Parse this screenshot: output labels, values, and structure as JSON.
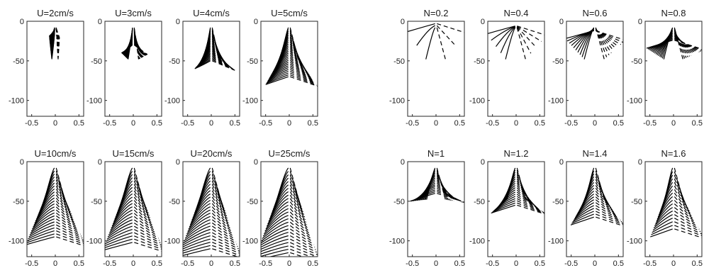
{
  "chart_data": [
    {
      "type": "line",
      "group": "velocity",
      "panels": [
        {
          "title": "U=2cm/s",
          "fan": 9,
          "lineCount": 32,
          "solidCut": 0.08,
          "endLen": 0.04
        },
        {
          "title": "U=3cm/s",
          "fan": 30,
          "lineCount": 28,
          "solidCut": 0.2,
          "endLen": 0.25
        },
        {
          "title": "U=4cm/s",
          "fan": 50,
          "lineCount": 28,
          "solidCut": 0.3,
          "endLen": 0.45
        },
        {
          "title": "U=5cm/s",
          "fan": 70,
          "lineCount": 28,
          "solidCut": 0.45,
          "endLen": 0.55
        },
        {
          "title": "U=10cm/s",
          "fan": 95,
          "lineCount": 24,
          "solidCut": 0.58,
          "endLen": 0.6
        },
        {
          "title": "U=15cm/s",
          "fan": 102,
          "lineCount": 24,
          "solidCut": 0.6,
          "endLen": 0.6
        },
        {
          "title": "U=20cm/s",
          "fan": 110,
          "lineCount": 26,
          "solidCut": 0.65,
          "endLen": 0.6
        },
        {
          "title": "U=25cm/s",
          "fan": 115,
          "lineCount": 26,
          "solidCut": 0.7,
          "endLen": 0.6
        }
      ]
    },
    {
      "type": "line",
      "group": "stratification",
      "panels": [
        {
          "title": "N=0.2",
          "fan": 3,
          "lineCount": 3,
          "solidCut": 0.55,
          "endLen": 0.6
        },
        {
          "title": "N=0.4",
          "fan": 6,
          "lineCount": 5,
          "solidCut": 0.58,
          "endLen": 0.6
        },
        {
          "title": "N=0.6",
          "fan": 12,
          "lineCount": 10,
          "solidCut": 0.58,
          "endLen": 0.6
        },
        {
          "title": "N=0.8",
          "fan": 24,
          "lineCount": 14,
          "solidCut": 0.52,
          "endLen": 0.6
        },
        {
          "title": "N=1",
          "fan": 40,
          "lineCount": 16,
          "solidCut": 0.5,
          "endLen": 0.6
        },
        {
          "title": "N=1.2",
          "fan": 55,
          "lineCount": 18,
          "solidCut": 0.48,
          "endLen": 0.6
        },
        {
          "title": "N=1.4",
          "fan": 70,
          "lineCount": 18,
          "solidCut": 0.46,
          "endLen": 0.6
        },
        {
          "title": "N=1.6",
          "fan": 85,
          "lineCount": 18,
          "solidCut": 0.44,
          "endLen": 0.6
        }
      ]
    }
  ],
  "axes": {
    "xlim": [
      -0.6,
      0.6
    ],
    "ylim": [
      -120,
      0
    ],
    "xticks": [
      -0.5,
      0,
      0.5
    ],
    "xtick_labels": [
      "-0.5",
      "0",
      "0.5"
    ],
    "yticks": [
      0,
      -50,
      -100
    ],
    "ytick_labels": [
      "0",
      "-50",
      "-100"
    ]
  },
  "style": {
    "line_color": "#000000",
    "axis_color": "#262626",
    "background": "#ffffff"
  }
}
